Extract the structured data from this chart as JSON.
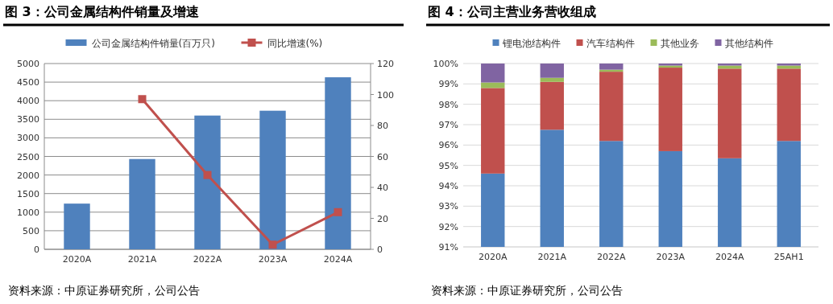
{
  "chart_data": [
    {
      "type": "bar",
      "title": "图 3：公司金属结构件销量及增速",
      "categories": [
        "2020A",
        "2021A",
        "2022A",
        "2023A",
        "2024A"
      ],
      "series": [
        {
          "name": "公司金属结构件销量(百万只)",
          "color": "#4f81bd",
          "values": [
            1230,
            2430,
            3600,
            3730,
            4630
          ]
        },
        {
          "name": "同比增速(%)",
          "type": "line",
          "axis": "y2",
          "color": "#c0504d",
          "values": [
            null,
            97,
            48,
            3,
            24
          ]
        }
      ],
      "ylim": [
        0,
        5000
      ],
      "yticks": [
        0,
        500,
        1000,
        1500,
        2000,
        2500,
        3000,
        3500,
        4000,
        4500,
        5000
      ],
      "y2lim": [
        0,
        120
      ],
      "y2ticks": [
        0,
        20,
        40,
        60,
        80,
        100,
        120
      ],
      "grid": "y",
      "legend": "top",
      "marker": "square",
      "annotations": [
        "资料来源：中原证券研究所，公司公告"
      ]
    },
    {
      "type": "bar",
      "title": "图 4：公司主营业务营收组成",
      "categories": [
        "2020A",
        "2021A",
        "2022A",
        "2023A",
        "2024A",
        "25AH1"
      ],
      "stacked": true,
      "series": [
        {
          "name": "锂电池结构件",
          "color": "#4f81bd",
          "values": [
            94.6,
            96.75,
            96.2,
            95.7,
            95.35,
            96.2
          ]
        },
        {
          "name": "汽车结构件",
          "color": "#c0504d",
          "base": [
            94.6,
            96.75,
            96.2,
            95.7,
            95.35,
            96.2
          ],
          "values": [
            4.2,
            2.35,
            3.4,
            4.1,
            4.4,
            3.55
          ]
        },
        {
          "name": "其他业务",
          "color": "#9bbb59",
          "base": [
            98.8,
            99.1,
            99.6,
            99.8,
            99.75,
            99.75
          ],
          "values": [
            0.27,
            0.2,
            0.1,
            0.1,
            0.15,
            0.15
          ]
        },
        {
          "name": "其他结构件",
          "color": "#8064a2",
          "base": [
            99.07,
            99.3,
            99.7,
            99.9,
            99.9,
            99.9
          ],
          "values": [
            0.93,
            0.7,
            0.3,
            0.1,
            0.1,
            0.1
          ]
        }
      ],
      "ylim": [
        91,
        100
      ],
      "yticks": [
        {
          "value": 91,
          "label": "91%"
        },
        {
          "value": 92,
          "label": "92%"
        },
        {
          "value": 93,
          "label": "93%"
        },
        {
          "value": 94,
          "label": "94%"
        },
        {
          "value": 95,
          "label": "95%"
        },
        {
          "value": 96,
          "label": "96%"
        },
        {
          "value": 97,
          "label": "97%"
        },
        {
          "value": 98,
          "label": "98%"
        },
        {
          "value": 99,
          "label": "99%"
        },
        {
          "value": 100,
          "label": "100%"
        }
      ],
      "grid": "y",
      "legend": "top",
      "annotations": [
        "资料来源：中原证券研究所，公司公告"
      ]
    }
  ]
}
